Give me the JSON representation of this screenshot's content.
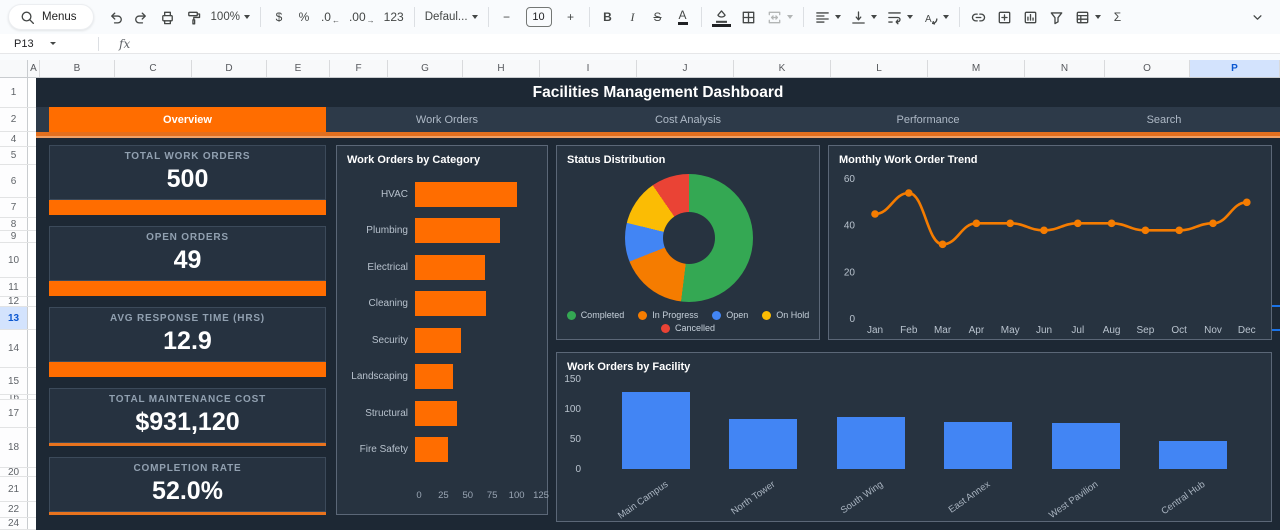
{
  "app": {
    "toolbar": {
      "items": [
        {
          "kind": "pill",
          "name": "menus-button",
          "icon": "search",
          "label": "Menus"
        },
        {
          "kind": "icon",
          "name": "undo-button",
          "icon": "undo"
        },
        {
          "kind": "icon",
          "name": "redo-button",
          "icon": "redo"
        },
        {
          "kind": "icon",
          "name": "print-button",
          "icon": "print"
        },
        {
          "kind": "icon",
          "name": "paint-format-button",
          "icon": "paint"
        },
        {
          "kind": "dropdown",
          "name": "zoom-select",
          "label": "100%"
        },
        {
          "kind": "divider"
        },
        {
          "kind": "text",
          "name": "format-currency-button",
          "label": "$"
        },
        {
          "kind": "text",
          "name": "format-percent-button",
          "label": "%"
        },
        {
          "kind": "decimal",
          "name": "decrease-decimal-button",
          "label": ".0",
          "arrow": "←"
        },
        {
          "kind": "decimal",
          "name": "increase-decimal-button",
          "label": ".00",
          "arrow": "→"
        },
        {
          "kind": "text",
          "name": "more-formats-button",
          "label": "123"
        },
        {
          "kind": "divider"
        },
        {
          "kind": "dropdown",
          "name": "font-select",
          "label": "Defaul..."
        },
        {
          "kind": "divider"
        },
        {
          "kind": "text",
          "name": "decrease-font-size-button",
          "label": "−"
        },
        {
          "kind": "input",
          "name": "font-size-input",
          "label": "10"
        },
        {
          "kind": "text",
          "name": "increase-font-size-button",
          "label": "+"
        },
        {
          "kind": "divider"
        },
        {
          "kind": "text",
          "name": "bold-button",
          "label": "B",
          "style": "bold"
        },
        {
          "kind": "text",
          "name": "italic-button",
          "label": "I",
          "style": "italic"
        },
        {
          "kind": "text",
          "name": "strikethrough-button",
          "label": "S",
          "style": "strike"
        },
        {
          "kind": "text",
          "name": "text-color-button",
          "label": "A",
          "style": "underbar"
        },
        {
          "kind": "divider"
        },
        {
          "kind": "icon",
          "name": "fill-color-button",
          "icon": "fill",
          "underbar": true
        },
        {
          "kind": "icon",
          "name": "borders-button",
          "icon": "borders"
        },
        {
          "kind": "icon",
          "name": "merge-cells-button",
          "icon": "merge",
          "disabled": true,
          "caret": true
        },
        {
          "kind": "divider"
        },
        {
          "kind": "icon",
          "name": "horizontal-align-button",
          "icon": "alignleft",
          "caret": true
        },
        {
          "kind": "icon",
          "name": "vertical-align-button",
          "icon": "valign",
          "caret": true
        },
        {
          "kind": "icon",
          "name": "text-wrap-button",
          "icon": "wrap",
          "caret": true
        },
        {
          "kind": "icon",
          "name": "text-rotation-button",
          "icon": "rotate",
          "caret": true
        },
        {
          "kind": "divider"
        },
        {
          "kind": "icon",
          "name": "insert-link-button",
          "icon": "link"
        },
        {
          "kind": "icon",
          "name": "insert-comment-button",
          "icon": "comment"
        },
        {
          "kind": "icon",
          "name": "insert-chart-button",
          "icon": "chart"
        },
        {
          "kind": "icon",
          "name": "create-filter-button",
          "icon": "filter"
        },
        {
          "kind": "icon",
          "name": "table-views-button",
          "icon": "table",
          "caret": true
        },
        {
          "kind": "text",
          "name": "functions-button",
          "label": "Σ"
        },
        {
          "kind": "icon",
          "name": "toolbar-collapse-button",
          "icon": "chevron",
          "align": "right"
        }
      ]
    },
    "name_box": "P13",
    "fx_label": "fx",
    "columns": [
      "A",
      "B",
      "C",
      "D",
      "E",
      "F",
      "G",
      "H",
      "I",
      "J",
      "K",
      "L",
      "M",
      "N",
      "O",
      "P"
    ],
    "selected_column": "P",
    "selected_cell": "P13",
    "rows": [
      {
        "label": "1",
        "h": 30
      },
      {
        "label": "2",
        "h": 24
      },
      {
        "label": "4",
        "h": 15
      },
      {
        "label": "5",
        "h": 18
      },
      {
        "label": "6",
        "h": 33
      },
      {
        "label": "7",
        "h": 20
      },
      {
        "label": "8",
        "h": 13
      },
      {
        "label": "9",
        "h": 12
      },
      {
        "label": "10",
        "h": 35
      },
      {
        "label": "11",
        "h": 19
      },
      {
        "label": "12",
        "h": 10
      },
      {
        "label": "13",
        "h": 23,
        "selected": true
      },
      {
        "label": "14",
        "h": 38
      },
      {
        "label": "15",
        "h": 27
      },
      {
        "label": "16",
        "h": 5
      },
      {
        "label": "17",
        "h": 28
      },
      {
        "label": "18",
        "h": 40
      },
      {
        "label": "20",
        "h": 9
      },
      {
        "label": "21",
        "h": 25
      },
      {
        "label": "22",
        "h": 16
      },
      {
        "label": "24",
        "h": 12
      }
    ]
  },
  "dashboard": {
    "title": "Facilities Management Dashboard",
    "accent": "#FF6D00",
    "tabs": [
      {
        "label": "Overview",
        "active": true
      },
      {
        "label": "Work Orders",
        "active": false
      },
      {
        "label": "Cost Analysis",
        "active": false
      },
      {
        "label": "Performance",
        "active": false
      },
      {
        "label": "Search",
        "active": false
      }
    ],
    "kpis": [
      {
        "label": "TOTAL WORK ORDERS",
        "value": "500",
        "accent": "thick"
      },
      {
        "label": "OPEN ORDERS",
        "value": "49",
        "accent": "thick"
      },
      {
        "label": "AVG RESPONSE TIME (HRS)",
        "value": "12.9",
        "accent": "thick"
      },
      {
        "label": "TOTAL MAINTENANCE COST",
        "value": "$931,120",
        "accent": "thin"
      },
      {
        "label": "COMPLETION RATE",
        "value": "52.0%",
        "accent": "thin"
      }
    ]
  },
  "chart_data": [
    {
      "type": "bar",
      "orientation": "horizontal",
      "title": "Work Orders by Category",
      "categories": [
        "HVAC",
        "Plumbing",
        "Electrical",
        "Cleaning",
        "Security",
        "Landscaping",
        "Structural",
        "Fire Safety"
      ],
      "values": [
        105,
        87,
        72,
        73,
        47,
        39,
        43,
        34
      ],
      "xlim": [
        0,
        125
      ],
      "xticks": [
        0,
        25,
        50,
        75,
        100,
        125
      ],
      "bar_color": "#FF6D00",
      "grid": false
    },
    {
      "type": "pie",
      "subtype": "donut",
      "title": "Status Distribution",
      "labels": [
        "Completed",
        "In Progress",
        "Open",
        "On Hold",
        "Cancelled"
      ],
      "values": [
        260,
        85,
        49,
        58,
        48
      ],
      "colors": [
        "#34A853",
        "#F57C00",
        "#4285F4",
        "#FBBC04",
        "#EA4335"
      ],
      "legend_position": "bottom"
    },
    {
      "type": "line",
      "title": "Monthly Work Order Trend",
      "x": [
        "Jan",
        "Feb",
        "Mar",
        "Apr",
        "May",
        "Jun",
        "Jul",
        "Aug",
        "Sep",
        "Oct",
        "Nov",
        "Dec"
      ],
      "values": [
        45,
        54,
        32,
        41,
        41,
        38,
        41,
        41,
        38,
        38,
        41,
        50
      ],
      "ylim": [
        0,
        60
      ],
      "yticks": [
        0,
        20,
        40,
        60
      ],
      "line_color": "#F57C00",
      "markers": true,
      "smooth": true,
      "grid": false
    },
    {
      "type": "bar",
      "orientation": "vertical",
      "title": "Work Orders by Facility",
      "categories": [
        "Main Campus",
        "North Tower",
        "South Wing",
        "East Annex",
        "West Pavilion",
        "Central Hub"
      ],
      "values": [
        128,
        84,
        86,
        78,
        77,
        47
      ],
      "ylim": [
        0,
        150
      ],
      "yticks": [
        0,
        50,
        100,
        150
      ],
      "bar_color": "#4285F4",
      "grid": false
    }
  ]
}
